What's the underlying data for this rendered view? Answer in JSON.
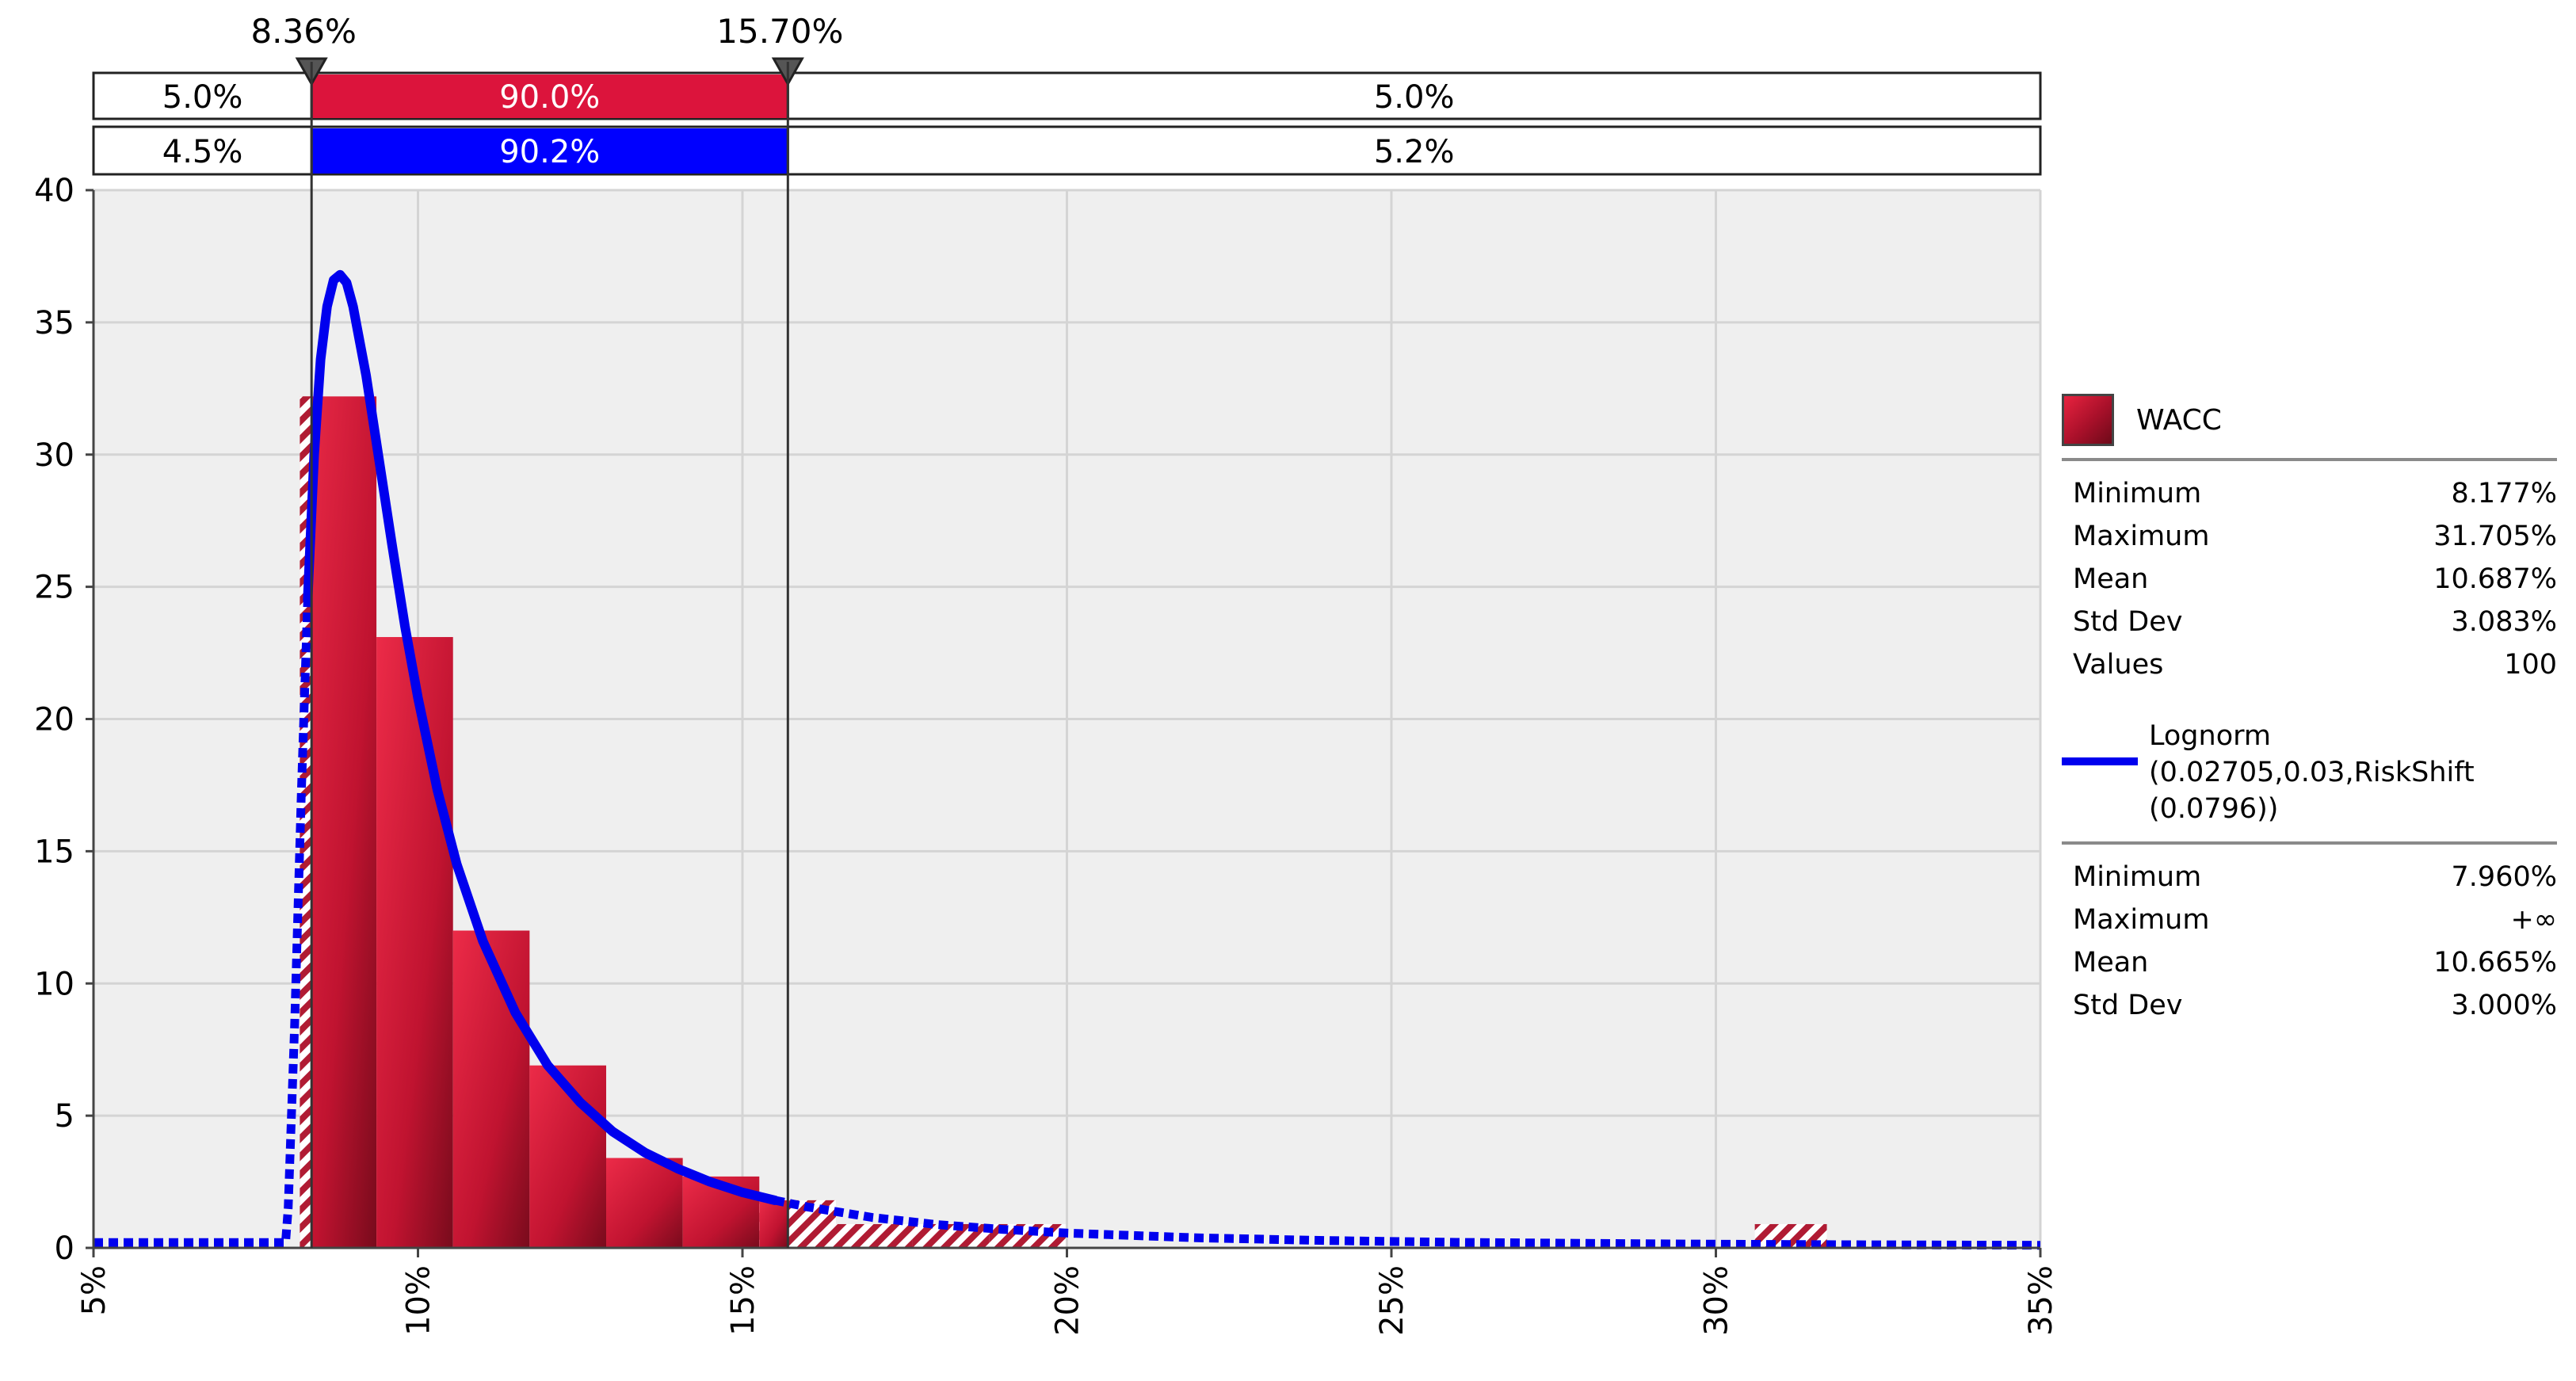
{
  "chart_data": {
    "type": "histogram",
    "xlim": [
      5,
      35
    ],
    "ylim": [
      0,
      40
    ],
    "x_ticks": [
      "5%",
      "10%",
      "15%",
      "20%",
      "25%",
      "30%",
      "35%"
    ],
    "y_ticks": [
      "0",
      "5",
      "10",
      "15",
      "20",
      "25",
      "30",
      "35",
      "40"
    ],
    "grid": true,
    "delimiters": {
      "left": "8.36%",
      "right": "15.70%",
      "left_value": 8.36,
      "right_value": 15.7
    },
    "probability_bars": [
      {
        "series": "WACC",
        "color": "#dc143c",
        "left": "5.0%",
        "middle": "90.0%",
        "right": "5.0%"
      },
      {
        "series": "Lognorm",
        "color": "#0000ff",
        "left": "4.5%",
        "middle": "90.2%",
        "right": "5.2%"
      }
    ],
    "histogram": {
      "name": "WACC",
      "bins": [
        {
          "x0": 8.18,
          "x1": 9.36,
          "value": 32.2
        },
        {
          "x0": 9.36,
          "x1": 10.54,
          "value": 23.1
        },
        {
          "x0": 10.54,
          "x1": 11.72,
          "value": 12.0
        },
        {
          "x0": 11.72,
          "x1": 12.9,
          "value": 6.9
        },
        {
          "x0": 12.9,
          "x1": 14.08,
          "value": 3.4
        },
        {
          "x0": 14.08,
          "x1": 15.26,
          "value": 2.7
        },
        {
          "x0": 15.26,
          "x1": 16.44,
          "value": 1.8
        },
        {
          "x0": 16.44,
          "x1": 17.62,
          "value": 0.9
        },
        {
          "x0": 17.62,
          "x1": 18.8,
          "value": 0.9
        },
        {
          "x0": 18.8,
          "x1": 19.98,
          "value": 0.9
        },
        {
          "x0": 30.6,
          "x1": 31.71,
          "value": 0.9
        }
      ]
    },
    "fit_curve": {
      "name": "Lognorm",
      "x": [
        5.0,
        7.96,
        8.0,
        8.1,
        8.2,
        8.3,
        8.4,
        8.5,
        8.6,
        8.7,
        8.8,
        8.9,
        9.0,
        9.2,
        9.4,
        9.6,
        9.8,
        10.0,
        10.3,
        10.6,
        11.0,
        11.5,
        12.0,
        12.5,
        13.0,
        13.5,
        14.0,
        14.5,
        15.0,
        15.5,
        16.0,
        17.0,
        18.0,
        19.0,
        20.0,
        22.0,
        24.0,
        26.0,
        28.0,
        30.0,
        32.0,
        35.0
      ],
      "y": [
        0.2,
        0.2,
        1.5,
        8.5,
        17.0,
        24.5,
        30.0,
        33.6,
        35.6,
        36.6,
        36.8,
        36.5,
        35.6,
        33.0,
        29.8,
        26.6,
        23.5,
        20.8,
        17.3,
        14.5,
        11.6,
        8.9,
        6.9,
        5.5,
        4.4,
        3.6,
        3.0,
        2.5,
        2.1,
        1.8,
        1.55,
        1.15,
        0.88,
        0.7,
        0.56,
        0.38,
        0.28,
        0.21,
        0.17,
        0.14,
        0.12,
        0.1
      ]
    },
    "legend": {
      "histogram_name": "WACC",
      "histogram_stats": [
        {
          "label": "Minimum",
          "value": "8.177%"
        },
        {
          "label": "Maximum",
          "value": "31.705%"
        },
        {
          "label": "Mean",
          "value": "10.687%"
        },
        {
          "label": "Std Dev",
          "value": "3.083%"
        },
        {
          "label": "Values",
          "value": "100"
        }
      ],
      "fit_lines": [
        "Lognorm",
        "(0.02705,0.03,RiskShift",
        "(0.0796))"
      ],
      "fit_stats": [
        {
          "label": "Minimum",
          "value": "7.960%"
        },
        {
          "label": "Maximum",
          "value": "+∞"
        },
        {
          "label": "Mean",
          "value": "10.665%"
        },
        {
          "label": "Std Dev",
          "value": "3.000%"
        }
      ]
    }
  }
}
